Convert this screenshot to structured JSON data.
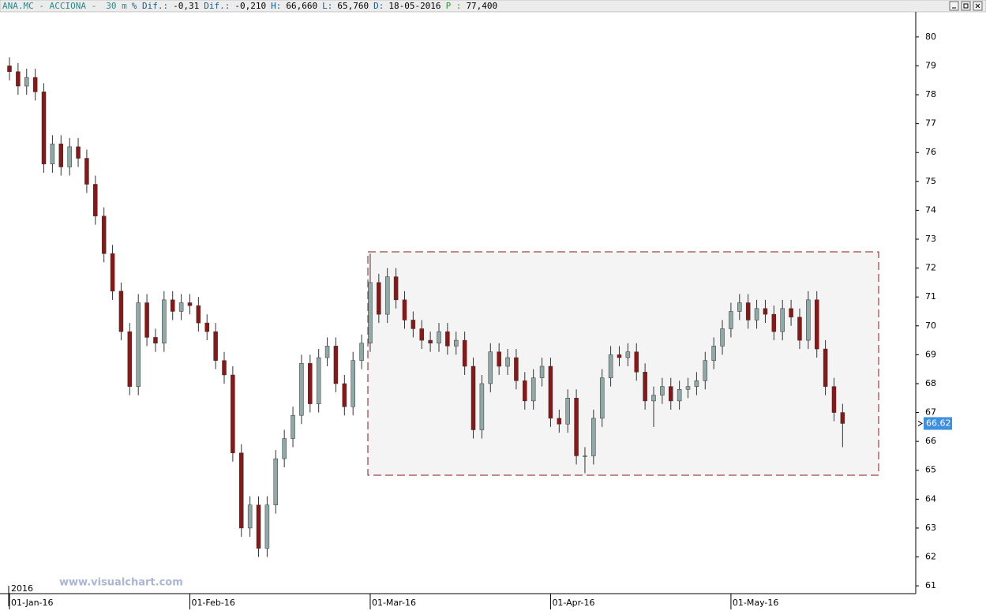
{
  "header": {
    "symbol": "ANA.MC - ACCIONA -",
    "period": "30 m",
    "fields": [
      {
        "label": "% Dif.:",
        "value": "-0,31"
      },
      {
        "label": "Dif.:",
        "value": "-0,210"
      },
      {
        "label": "H:",
        "value": "66,660"
      },
      {
        "label": "L:",
        "value": "65,760"
      },
      {
        "label": "D:",
        "value": "18-05-2016"
      },
      {
        "label": "P :",
        "value": "77,400"
      }
    ]
  },
  "watermark": "www.visualchart.com",
  "chart_data": {
    "type": "candlestick",
    "year_label": "2016",
    "categories": [
      "01-Jan-16",
      null,
      null,
      null,
      null,
      null,
      null,
      null,
      null,
      null,
      null,
      null,
      null,
      null,
      null,
      null,
      null,
      null,
      null,
      null,
      null,
      "01-Feb-16",
      null,
      null,
      null,
      null,
      null,
      null,
      null,
      null,
      null,
      null,
      null,
      null,
      null,
      null,
      null,
      null,
      null,
      null,
      null,
      null,
      "01-Mar-16",
      null,
      null,
      null,
      null,
      null,
      null,
      null,
      null,
      null,
      null,
      null,
      null,
      null,
      null,
      null,
      null,
      null,
      null,
      null,
      null,
      "01-Apr-16",
      null,
      null,
      null,
      null,
      null,
      null,
      null,
      null,
      null,
      null,
      null,
      null,
      null,
      null,
      null,
      null,
      null,
      null,
      null,
      null,
      "01-May-16",
      null,
      null,
      null,
      null,
      null,
      null,
      null,
      null,
      null,
      null,
      null,
      null,
      null
    ],
    "open": [
      79.0,
      78.8,
      78.3,
      78.6,
      78.1,
      75.6,
      76.3,
      75.5,
      76.2,
      75.8,
      74.9,
      73.8,
      72.5,
      71.2,
      69.8,
      67.9,
      70.8,
      69.6,
      69.4,
      70.9,
      70.5,
      70.8,
      70.7,
      70.1,
      69.8,
      68.8,
      68.3,
      65.6,
      63.0,
      63.8,
      62.3,
      63.8,
      65.4,
      66.1,
      66.9,
      68.7,
      67.3,
      68.9,
      69.3,
      68.0,
      67.2,
      68.8,
      69.4,
      71.5,
      70.4,
      71.7,
      70.9,
      70.2,
      69.9,
      69.5,
      69.4,
      69.8,
      69.3,
      69.5,
      68.6,
      66.4,
      68.0,
      69.1,
      68.6,
      68.9,
      68.1,
      67.4,
      68.2,
      68.6,
      66.8,
      66.6,
      67.5,
      65.5,
      65.5,
      66.8,
      68.2,
      69.0,
      68.9,
      69.1,
      68.4,
      67.4,
      67.6,
      67.9,
      67.4,
      67.8,
      67.9,
      68.1,
      68.8,
      69.3,
      69.9,
      70.5,
      70.8,
      70.2,
      70.6,
      70.4,
      69.8,
      70.6,
      70.3,
      69.5,
      70.9,
      69.2,
      67.9,
      67.0
    ],
    "high": [
      79.3,
      79.1,
      78.9,
      78.9,
      78.4,
      76.6,
      76.6,
      76.5,
      76.5,
      76.1,
      75.2,
      74.1,
      72.8,
      71.5,
      70.1,
      71.1,
      71.1,
      69.9,
      71.2,
      71.2,
      71.1,
      71.1,
      71.0,
      70.4,
      70.1,
      69.1,
      68.6,
      65.9,
      64.1,
      64.1,
      64.1,
      65.7,
      66.4,
      67.2,
      69.0,
      69.0,
      69.2,
      69.6,
      69.6,
      68.3,
      69.1,
      69.7,
      72.5,
      71.8,
      72.0,
      72.0,
      71.2,
      70.5,
      70.2,
      69.8,
      70.1,
      70.1,
      69.8,
      69.8,
      68.9,
      68.3,
      69.4,
      69.4,
      69.2,
      69.2,
      68.4,
      68.5,
      68.9,
      68.9,
      67.1,
      67.8,
      67.8,
      65.8,
      67.1,
      68.5,
      69.3,
      69.3,
      69.4,
      69.4,
      68.7,
      67.9,
      68.2,
      68.2,
      68.1,
      68.2,
      68.4,
      69.1,
      69.6,
      70.2,
      70.8,
      71.1,
      71.1,
      70.9,
      70.9,
      70.7,
      70.9,
      70.9,
      70.6,
      71.2,
      71.2,
      69.5,
      68.2,
      67.3
    ],
    "low": [
      78.5,
      78.0,
      78.0,
      77.8,
      75.3,
      75.3,
      75.2,
      75.2,
      75.5,
      74.6,
      73.5,
      72.2,
      70.9,
      69.5,
      67.6,
      67.6,
      69.3,
      69.1,
      69.1,
      70.2,
      70.2,
      70.4,
      69.8,
      69.5,
      68.5,
      68.0,
      65.3,
      62.7,
      62.7,
      62.0,
      62.0,
      63.5,
      65.1,
      65.8,
      66.6,
      67.0,
      67.0,
      68.6,
      67.7,
      66.9,
      66.9,
      68.5,
      69.1,
      70.1,
      70.1,
      70.6,
      69.9,
      69.6,
      69.2,
      69.1,
      69.1,
      69.0,
      69.0,
      68.3,
      66.1,
      66.1,
      67.7,
      68.3,
      68.3,
      67.8,
      67.1,
      67.1,
      67.9,
      66.5,
      66.3,
      66.3,
      65.2,
      64.9,
      65.2,
      66.5,
      67.9,
      68.6,
      68.6,
      68.1,
      67.1,
      66.5,
      67.3,
      67.1,
      67.1,
      67.5,
      67.6,
      67.8,
      68.5,
      69.0,
      69.6,
      70.2,
      69.9,
      69.9,
      70.1,
      69.5,
      69.5,
      70.0,
      69.2,
      69.2,
      68.9,
      67.6,
      66.7,
      65.8
    ],
    "close": [
      78.8,
      78.3,
      78.6,
      78.1,
      75.6,
      76.3,
      75.5,
      76.2,
      75.8,
      74.9,
      73.8,
      72.5,
      71.2,
      69.8,
      67.9,
      70.8,
      69.6,
      69.4,
      70.9,
      70.5,
      70.8,
      70.7,
      70.1,
      69.8,
      68.8,
      68.3,
      65.6,
      63.0,
      63.8,
      62.3,
      63.8,
      65.4,
      66.1,
      66.9,
      68.7,
      67.3,
      68.9,
      69.3,
      68.0,
      67.2,
      68.8,
      69.4,
      71.5,
      70.4,
      71.7,
      70.9,
      70.2,
      69.9,
      69.5,
      69.4,
      69.8,
      69.3,
      69.5,
      68.6,
      66.4,
      68.0,
      69.1,
      68.6,
      68.9,
      68.1,
      67.4,
      68.2,
      68.6,
      66.8,
      66.6,
      67.5,
      65.5,
      65.5,
      66.8,
      68.2,
      69.0,
      68.9,
      69.1,
      68.4,
      67.4,
      67.6,
      67.9,
      67.4,
      67.8,
      67.9,
      68.1,
      68.8,
      69.3,
      69.9,
      70.5,
      70.8,
      70.2,
      70.6,
      70.4,
      69.8,
      70.6,
      70.3,
      69.5,
      70.9,
      69.2,
      67.9,
      67.0,
      66.62
    ],
    "up_color": "#8fa9a6",
    "down_color": "#8b1616",
    "last_price": 66.62,
    "last_price_color": "#3d8fe0",
    "ylim": [
      60.73,
      80.87
    ],
    "yticks": [
      61,
      62,
      63,
      64,
      65,
      66,
      67,
      68,
      69,
      70,
      71,
      72,
      73,
      74,
      75,
      76,
      77,
      78,
      79,
      80
    ],
    "grid": false
  }
}
